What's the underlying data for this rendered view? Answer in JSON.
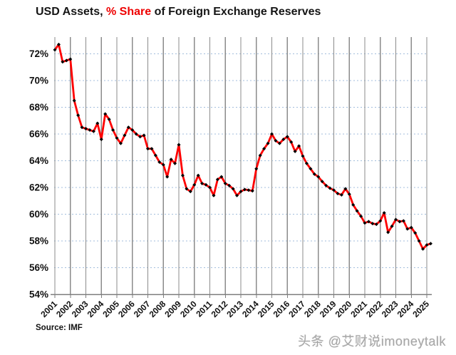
{
  "title": {
    "prefix": "USD Assets, ",
    "highlight": "% Share",
    "suffix": " of Foreign Exchange Reserves"
  },
  "source": "Source: IMF",
  "watermark": "头条 @艾财说imoneytalk",
  "chart_data": {
    "type": "line",
    "title": "USD Assets, % Share of Foreign Exchange Reserves",
    "series_name": "USD share of allocated foreign exchange reserves (%)",
    "frequency": "quarterly",
    "x_start": "2001Q1",
    "x_end": "2025Q2",
    "x_tick_labels": [
      "2001",
      "2002",
      "2003",
      "2004",
      "2005",
      "2006",
      "2007",
      "2008",
      "2009",
      "2010",
      "2011",
      "2012",
      "2013",
      "2014",
      "2015",
      "2016",
      "2017",
      "2018",
      "2019",
      "2020",
      "2021",
      "2022",
      "2023",
      "2024",
      "2025"
    ],
    "y_tick_labels": [
      "54%",
      "56%",
      "58%",
      "60%",
      "62%",
      "64%",
      "66%",
      "68%",
      "70%",
      "72%"
    ],
    "y_ticks": [
      54,
      56,
      58,
      60,
      62,
      64,
      66,
      68,
      70,
      72
    ],
    "ylim": [
      54,
      73.2
    ],
    "grid_horizontal": "dotted light blue at each 2% from 56 to 72",
    "grid_vertical": "solid gray at each year",
    "legend": "none",
    "values": [
      72.3,
      72.7,
      71.4,
      71.5,
      71.6,
      68.5,
      67.4,
      66.5,
      66.4,
      66.3,
      66.2,
      66.8,
      65.6,
      67.5,
      67.1,
      66.3,
      65.7,
      65.3,
      65.9,
      66.5,
      66.3,
      66.0,
      65.8,
      65.9,
      64.9,
      64.9,
      64.4,
      63.9,
      63.7,
      62.8,
      64.1,
      63.8,
      65.2,
      62.9,
      61.9,
      61.7,
      62.2,
      62.9,
      62.3,
      62.2,
      62.0,
      61.4,
      62.6,
      62.8,
      62.3,
      62.15,
      61.9,
      61.4,
      61.7,
      61.85,
      61.8,
      61.75,
      63.4,
      64.4,
      64.9,
      65.3,
      66.0,
      65.5,
      65.3,
      65.6,
      65.8,
      65.4,
      64.7,
      65.1,
      64.35,
      63.8,
      63.4,
      63.0,
      62.8,
      62.45,
      62.15,
      61.95,
      61.8,
      61.55,
      61.45,
      61.9,
      61.5,
      60.7,
      60.25,
      59.85,
      59.35,
      59.45,
      59.3,
      59.25,
      59.5,
      60.1,
      58.65,
      59.1,
      59.6,
      59.45,
      59.5,
      58.9,
      59.0,
      58.6,
      58.0,
      57.4,
      57.7,
      57.8
    ],
    "colors": {
      "line": "#FE0000",
      "marker": "#000000",
      "grid_vertical": "#8B8B8B",
      "grid_horizontal": "#A3BEDC",
      "axis": "#7F7F7F",
      "tick_label": "#111111",
      "title_highlight": "#EE0000"
    }
  }
}
